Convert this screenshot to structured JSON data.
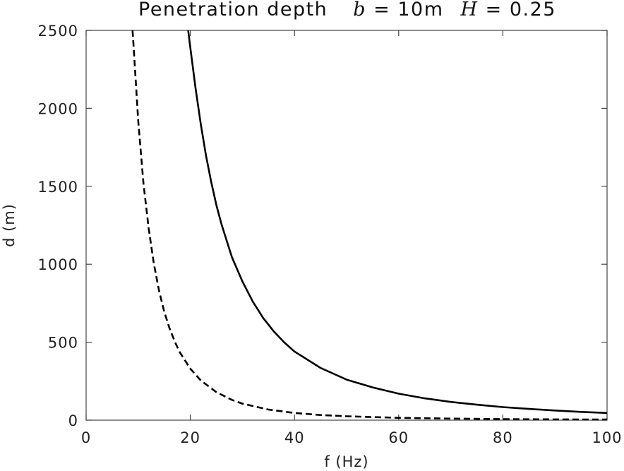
{
  "chart_data": {
    "type": "line",
    "title": "Penetration depth b = 10m H = 0.25",
    "title_parts": {
      "lead": "Penetration depth",
      "var_b": "b",
      "eq_b": " = 10m",
      "var_H": "H",
      "eq_H": " = 0.25"
    },
    "xlabel": "f (Hz)",
    "ylabel": "d (m)",
    "xlim": [
      0,
      100
    ],
    "ylim": [
      0,
      2500
    ],
    "xticks": [
      0,
      20,
      40,
      60,
      80,
      100
    ],
    "yticks": [
      0,
      500,
      1000,
      1500,
      2000,
      2500
    ],
    "xtick_labels": [
      "0",
      "20",
      "40",
      "60",
      "80",
      "100"
    ],
    "ytick_labels": [
      "0",
      "500",
      "1000",
      "1500",
      "2000",
      "2500"
    ],
    "grid": false,
    "legend": "none",
    "series": [
      {
        "style": "solid",
        "x": [
          19.6,
          20,
          21,
          22,
          23,
          24,
          25,
          26,
          28,
          30,
          32,
          34,
          36,
          38,
          40,
          45,
          50,
          55,
          60,
          65,
          70,
          75,
          80,
          85,
          90,
          95,
          100
        ],
        "y": [
          2500,
          2390,
          2130,
          1900,
          1700,
          1530,
          1380,
          1255,
          1045,
          890,
          760,
          655,
          570,
          500,
          440,
          335,
          260,
          210,
          170,
          140,
          117,
          99,
          84,
          72,
          62,
          53,
          46
        ]
      },
      {
        "style": "dashed",
        "x": [
          8.9,
          9,
          10,
          11,
          12,
          13,
          14,
          15,
          16,
          17,
          18,
          20,
          22,
          25,
          28,
          30,
          35,
          40,
          45,
          50,
          60,
          70,
          80,
          90,
          100
        ],
        "y": [
          2500,
          2460,
          1920,
          1520,
          1230,
          1005,
          830,
          695,
          590,
          505,
          435,
          330,
          255,
          180,
          130,
          106,
          68,
          46,
          33,
          25,
          15,
          10,
          7,
          5,
          4
        ]
      }
    ]
  }
}
